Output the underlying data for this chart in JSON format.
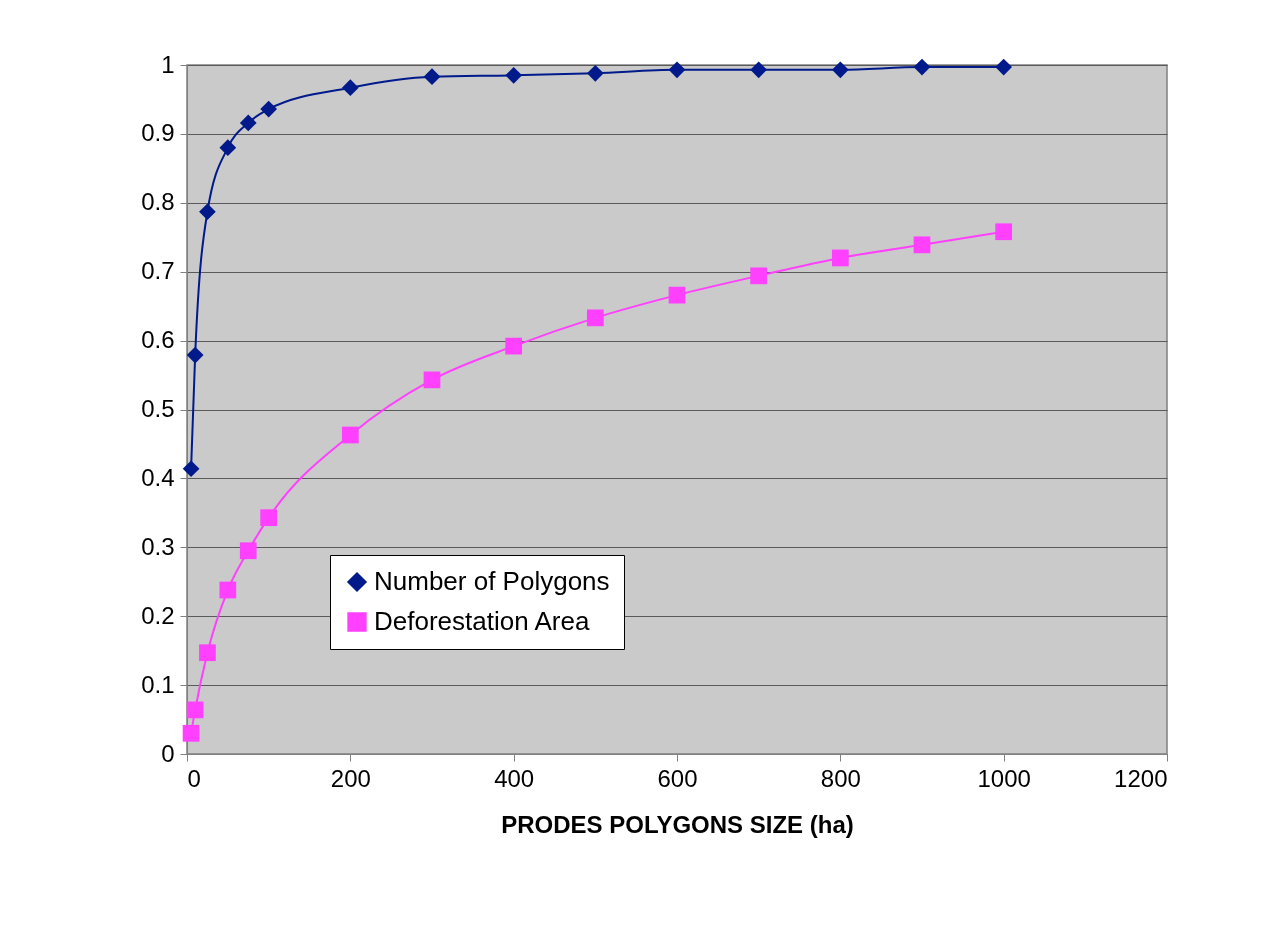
{
  "chart_data": {
    "type": "line",
    "xlabel": "PRODES POLYGONS SIZE (ha)",
    "x": [
      5,
      10,
      25,
      50,
      75,
      100,
      200,
      300,
      400,
      500,
      600,
      700,
      800,
      900,
      1000
    ],
    "series": [
      {
        "name": "Number of Polygons",
        "color": "#001a8c",
        "marker": "diamond",
        "values": [
          0.414,
          0.579,
          0.787,
          0.88,
          0.916,
          0.936,
          0.967,
          0.983,
          0.985,
          0.988,
          0.993,
          0.993,
          0.993,
          0.997,
          0.997
        ]
      },
      {
        "name": "Deforestation Area",
        "color": "#ff40ff",
        "marker": "square",
        "values": [
          0.03,
          0.064,
          0.147,
          0.238,
          0.295,
          0.343,
          0.463,
          0.543,
          0.592,
          0.633,
          0.666,
          0.694,
          0.72,
          0.739,
          0.758
        ]
      }
    ],
    "xlim": [
      0,
      1200
    ],
    "xticks": [
      0,
      200,
      400,
      600,
      800,
      1000,
      1200
    ],
    "ylim": [
      0,
      1
    ],
    "yticks": [
      0,
      0.1,
      0.2,
      0.3,
      0.4,
      0.5,
      0.6,
      0.7,
      0.8,
      0.9,
      1
    ],
    "grid": "y",
    "legend": "bottom left"
  }
}
